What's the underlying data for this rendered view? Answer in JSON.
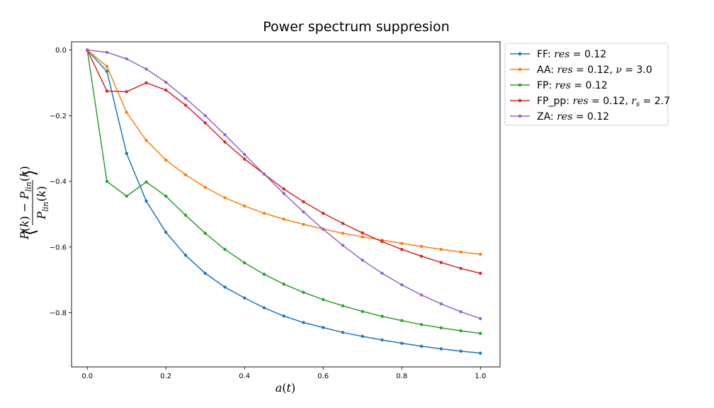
{
  "chart_data": {
    "type": "line",
    "title": "Power spectrum suppresion",
    "xlabel": "a(t)",
    "ylabel": "⟨(P(k) − P_lin(k)) / P_lin(k)⟩",
    "xlim": [
      -0.04,
      1.05
    ],
    "ylim": [
      -0.965,
      0.025
    ],
    "xticks": [
      "0.0",
      "0.2",
      "0.4",
      "0.6",
      "0.8",
      "1.0"
    ],
    "yticks": [
      "0.0",
      "−0.2",
      "−0.4",
      "−0.6",
      "−0.8"
    ],
    "grid": false,
    "legend_position": "outside-right-top",
    "x": [
      0.0,
      0.05,
      0.1,
      0.15,
      0.2,
      0.25,
      0.3,
      0.35,
      0.4,
      0.45,
      0.5,
      0.55,
      0.6,
      0.65,
      0.7,
      0.75,
      0.8,
      0.85,
      0.9,
      0.95,
      1.0
    ],
    "series": [
      {
        "name": "FF: res = 0.12",
        "color": "#1f77b4",
        "values": [
          0.0,
          -0.065,
          -0.315,
          -0.46,
          -0.555,
          -0.625,
          -0.68,
          -0.722,
          -0.755,
          -0.785,
          -0.81,
          -0.83,
          -0.845,
          -0.86,
          -0.872,
          -0.883,
          -0.893,
          -0.902,
          -0.91,
          -0.917,
          -0.923
        ]
      },
      {
        "name": "AA: res = 0.12, ν = 3.0",
        "color": "#ff7f0e",
        "values": [
          0.0,
          -0.05,
          -0.19,
          -0.275,
          -0.335,
          -0.38,
          -0.418,
          -0.45,
          -0.475,
          -0.497,
          -0.515,
          -0.531,
          -0.545,
          -0.558,
          -0.569,
          -0.579,
          -0.589,
          -0.598,
          -0.607,
          -0.615,
          -0.622
        ]
      },
      {
        "name": "FP: res = 0.12",
        "color": "#2ca02c",
        "values": [
          0.0,
          -0.4,
          -0.445,
          -0.402,
          -0.445,
          -0.503,
          -0.558,
          -0.607,
          -0.648,
          -0.683,
          -0.713,
          -0.738,
          -0.76,
          -0.779,
          -0.796,
          -0.811,
          -0.824,
          -0.836,
          -0.846,
          -0.855,
          -0.863
        ]
      },
      {
        "name": "FP_pp: res = 0.12, r_s = 2.7",
        "color": "#d62728",
        "values": [
          0.0,
          -0.125,
          -0.127,
          -0.1,
          -0.122,
          -0.168,
          -0.222,
          -0.28,
          -0.332,
          -0.378,
          -0.423,
          -0.462,
          -0.497,
          -0.528,
          -0.557,
          -0.583,
          -0.607,
          -0.628,
          -0.647,
          -0.665,
          -0.68
        ]
      },
      {
        "name": "ZA: res = 0.12",
        "color": "#9467bd",
        "values": [
          0.0,
          -0.007,
          -0.027,
          -0.058,
          -0.098,
          -0.147,
          -0.2,
          -0.258,
          -0.318,
          -0.378,
          -0.437,
          -0.493,
          -0.546,
          -0.595,
          -0.64,
          -0.68,
          -0.715,
          -0.746,
          -0.773,
          -0.797,
          -0.818
        ]
      }
    ]
  }
}
